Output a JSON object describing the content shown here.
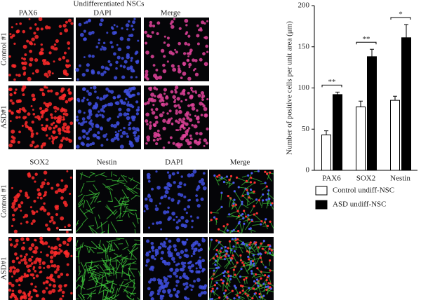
{
  "panels": {
    "top": {
      "title": "Undifferentiated NSCs",
      "columns": [
        "PAX6",
        "DAPI",
        "Merge"
      ],
      "rows": [
        "Control #1",
        "ASD#1"
      ]
    },
    "bottom": {
      "columns": [
        "SOX2",
        "Nestin",
        "DAPI",
        "Merge"
      ],
      "rows": [
        "Control #1",
        "ASD#1"
      ]
    }
  },
  "chart_data": {
    "type": "bar",
    "y_label": "Number of positive cells per unit area (μm)",
    "categories": [
      "PAX6",
      "SOX2",
      "Nestin"
    ],
    "series": [
      {
        "name": "Control undiff-NSC",
        "color": "#ffffff",
        "values": [
          43,
          77,
          85
        ],
        "errors": [
          5,
          7,
          5
        ]
      },
      {
        "name": "ASD undiff-NSC",
        "color": "#000000",
        "values": [
          92,
          138,
          161
        ],
        "errors": [
          3,
          9,
          16
        ]
      }
    ],
    "significance": [
      "**",
      "**",
      "*"
    ],
    "ylim": [
      0,
      200
    ],
    "yticks": [
      0,
      50,
      100,
      150,
      200
    ]
  }
}
